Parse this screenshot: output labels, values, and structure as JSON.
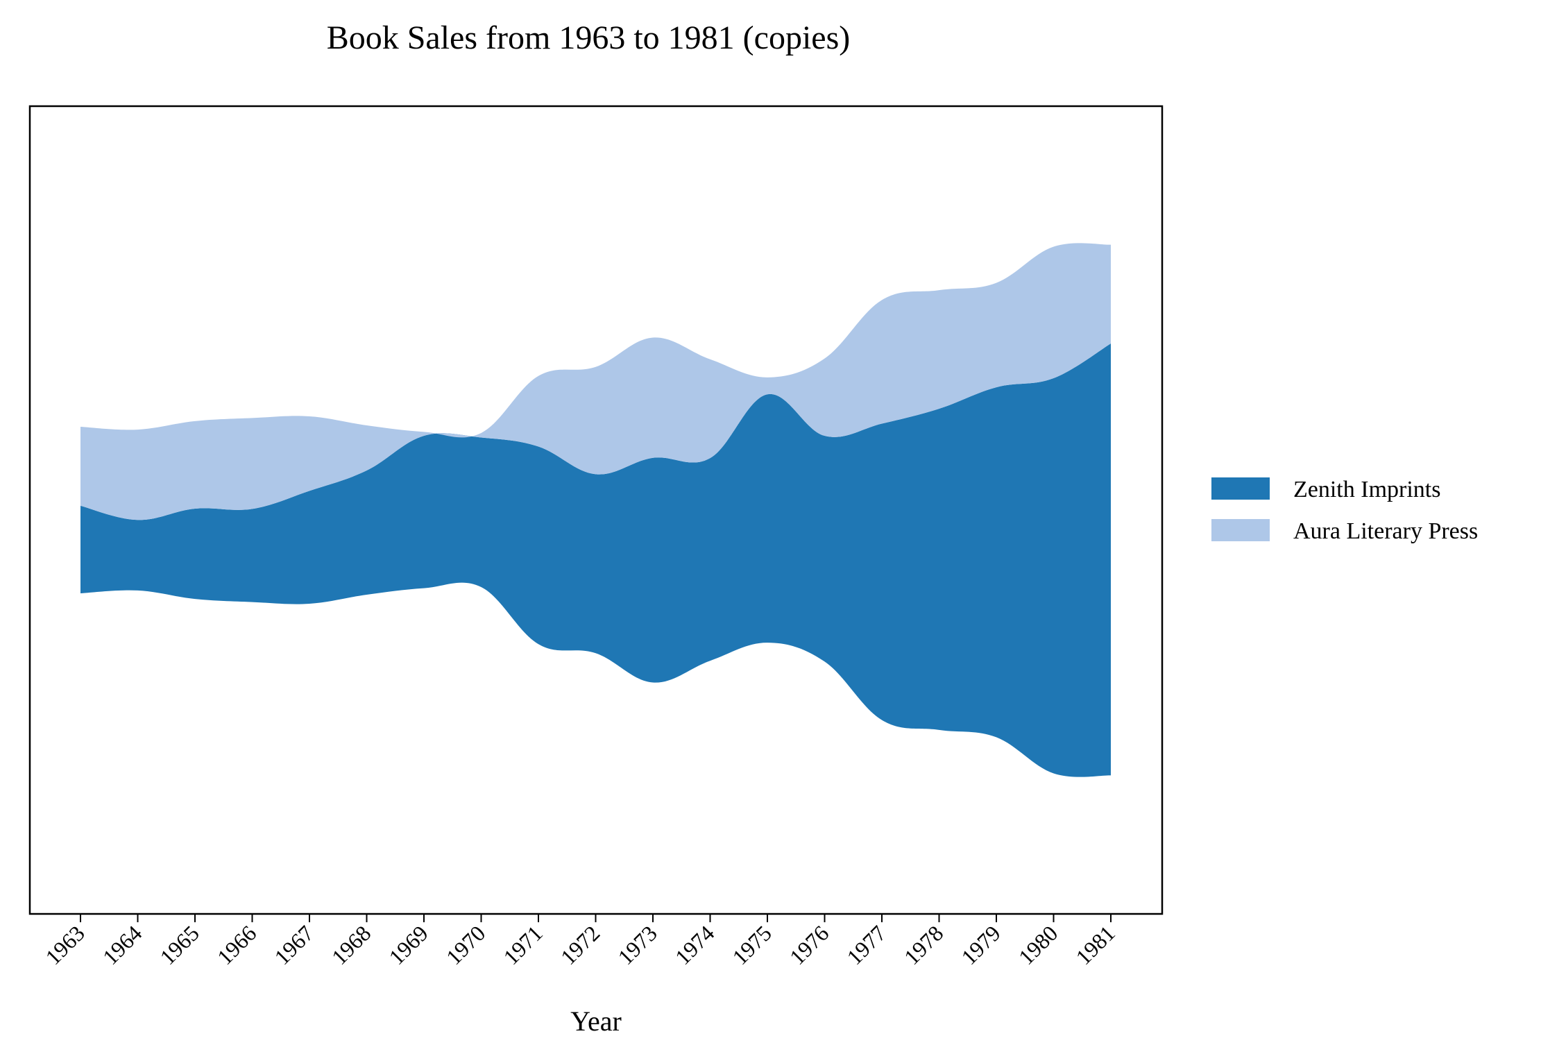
{
  "chart_data": {
    "type": "area",
    "subtype": "streamgraph",
    "title": "Book Sales from 1963 to 1981 (copies)",
    "xlabel": "Year",
    "ylabel": "",
    "x": [
      "1963",
      "1964",
      "1965",
      "1966",
      "1967",
      "1968",
      "1969",
      "1970",
      "1971",
      "1972",
      "1973",
      "1974",
      "1975",
      "1976",
      "1977",
      "1978",
      "1979",
      "1980",
      "1981"
    ],
    "baseline": "symmetric",
    "series": [
      {
        "name": "Zenith Imprints",
        "color": "#1f77b4",
        "values": [
          1550,
          1250,
          1600,
          1650,
          2000,
          2200,
          2700,
          2650,
          3500,
          3170,
          3980,
          3590,
          4400,
          4000,
          5250,
          5690,
          6200,
          7000,
          7650
        ]
      },
      {
        "name": "Aura Literary Press",
        "color": "#aec7e8",
        "values": [
          1400,
          1600,
          1550,
          1610,
          1320,
          800,
          70,
          80,
          1250,
          1900,
          2130,
          1750,
          300,
          1370,
          2190,
          2100,
          1850,
          2330,
          1750
        ]
      }
    ],
    "y_ticks_visible": false,
    "grid": false,
    "legend": {
      "position": "right",
      "entries": [
        "Zenith Imprints",
        "Aura Literary Press"
      ]
    }
  }
}
